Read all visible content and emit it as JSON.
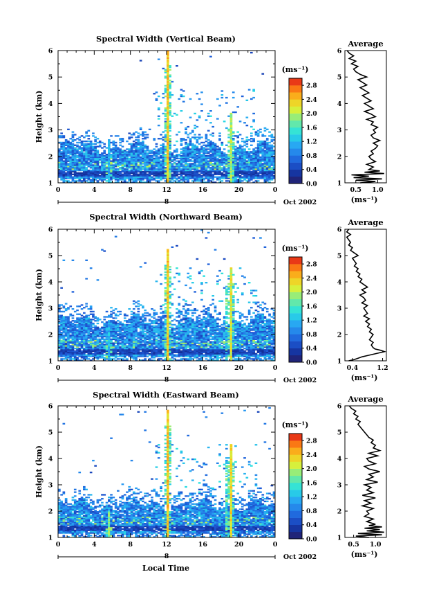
{
  "figure": {
    "xlabel": "Local Time",
    "date_suffix": "Oct 2002",
    "colorbar_unit": "(ms⁻¹)",
    "average_title": "Average",
    "average_unit": "(ms⁻¹)"
  },
  "chart_data": [
    {
      "type": "heatmap",
      "title": "Spectral Width (Vertical Beam)",
      "ylabel": "Height (km)",
      "xlim": [
        0,
        24
      ],
      "ylim": [
        1,
        6
      ],
      "x_ticks": [
        "0",
        "4",
        "8",
        "12",
        "16",
        "20",
        "0"
      ],
      "y_ticks": [
        "1",
        "2",
        "3",
        "4",
        "5",
        "6"
      ],
      "day_label": "8",
      "colorbar": {
        "range": [
          0,
          3
        ],
        "tick_values": [
          0.0,
          0.4,
          0.8,
          1.2,
          1.6,
          2.0,
          2.4,
          2.8
        ],
        "tick_labels": [
          "0.0",
          "0.4",
          "0.8",
          "1.2",
          "1.6",
          "2.0",
          "2.4",
          "2.8"
        ]
      },
      "features": {
        "layer_top_km": 2.3,
        "spikes": [
          {
            "time_h": 11.9,
            "top_km": 6.0,
            "value": 2.6
          },
          {
            "time_h": 19.0,
            "top_km": 3.6,
            "value": 2.2
          },
          {
            "time_h": 5.4,
            "top_km": 2.6,
            "value": 1.4
          }
        ]
      },
      "average": {
        "xlim": [
          0.25,
          1.2
        ],
        "x_ticks": [
          "0.5",
          "1.0"
        ],
        "x_tick_values": [
          0.5,
          1.0
        ],
        "heights": [
          1.0,
          1.05,
          1.1,
          1.15,
          1.2,
          1.25,
          1.3,
          1.35,
          1.4,
          1.45,
          1.5,
          1.6,
          1.7,
          1.8,
          1.9,
          2.0,
          2.1,
          2.2,
          2.3,
          2.4,
          2.5,
          2.6,
          2.7,
          2.8,
          2.9,
          3.0,
          3.1,
          3.2,
          3.3,
          3.4,
          3.5,
          3.6,
          3.7,
          3.8,
          3.9,
          4.0,
          4.1,
          4.2,
          4.3,
          4.4,
          4.5,
          4.6,
          4.7,
          4.8,
          4.9,
          5.0,
          5.1,
          5.2,
          5.3,
          5.4,
          5.5,
          5.6,
          5.7,
          5.8,
          5.9,
          6.0
        ],
        "values": [
          0.6,
          0.95,
          0.5,
          1.1,
          0.45,
          0.8,
          0.4,
          1.15,
          0.7,
          1.05,
          0.8,
          0.9,
          0.75,
          0.95,
          0.85,
          0.8,
          0.9,
          0.85,
          0.95,
          1.0,
          0.9,
          1.05,
          0.9,
          0.85,
          0.95,
          0.9,
          1.0,
          0.85,
          0.9,
          0.75,
          0.95,
          0.85,
          0.7,
          0.9,
          0.8,
          0.7,
          0.85,
          0.75,
          0.65,
          0.8,
          0.7,
          0.6,
          0.75,
          0.65,
          0.55,
          0.75,
          0.6,
          0.5,
          0.45,
          0.55,
          0.4,
          0.5,
          0.35,
          0.45,
          0.35,
          0.3
        ]
      }
    },
    {
      "type": "heatmap",
      "title": "Spectral Width (Northward Beam)",
      "ylabel": "Height (km)",
      "xlim": [
        0,
        24
      ],
      "ylim": [
        1,
        6
      ],
      "x_ticks": [
        "0",
        "4",
        "8",
        "12",
        "16",
        "20",
        "0"
      ],
      "y_ticks": [
        "1",
        "2",
        "3",
        "4",
        "5",
        "6"
      ],
      "day_label": "8",
      "colorbar": {
        "range": [
          0,
          3
        ],
        "tick_values": [
          0.0,
          0.4,
          0.8,
          1.2,
          1.6,
          2.0,
          2.4,
          2.8
        ],
        "tick_labels": [
          "0.0",
          "0.4",
          "0.8",
          "1.2",
          "1.6",
          "2.0",
          "2.4",
          "2.8"
        ]
      },
      "features": {
        "layer_top_km": 2.5,
        "spikes": [
          {
            "time_h": 11.9,
            "top_km": 5.2,
            "value": 2.6
          },
          {
            "time_h": 18.9,
            "top_km": 4.5,
            "value": 2.4
          },
          {
            "time_h": 5.4,
            "top_km": 2.5,
            "value": 1.4
          }
        ]
      },
      "average": {
        "xlim": [
          0.2,
          1.3
        ],
        "x_ticks": [
          "0.4",
          "1.2"
        ],
        "x_tick_values": [
          0.4,
          1.2
        ],
        "heights": [
          1.0,
          1.05,
          1.1,
          1.15,
          1.2,
          1.25,
          1.3,
          1.35,
          1.4,
          1.45,
          1.5,
          1.6,
          1.7,
          1.8,
          1.9,
          2.0,
          2.1,
          2.2,
          2.3,
          2.4,
          2.5,
          2.6,
          2.7,
          2.8,
          2.9,
          3.0,
          3.1,
          3.2,
          3.3,
          3.4,
          3.5,
          3.6,
          3.7,
          3.8,
          3.9,
          4.0,
          4.1,
          4.2,
          4.3,
          4.4,
          4.5,
          4.6,
          4.7,
          4.8,
          4.9,
          5.0,
          5.1,
          5.2,
          5.3,
          5.4,
          5.5,
          5.6,
          5.7,
          5.8,
          5.9,
          6.0
        ],
        "values": [
          0.3,
          0.45,
          0.55,
          0.65,
          0.8,
          0.95,
          1.1,
          1.25,
          1.15,
          1.0,
          0.95,
          0.9,
          0.95,
          0.85,
          0.9,
          0.95,
          0.85,
          0.9,
          0.8,
          0.85,
          0.75,
          0.85,
          0.7,
          0.8,
          0.75,
          0.7,
          0.8,
          0.65,
          0.75,
          0.7,
          0.6,
          0.75,
          0.65,
          0.8,
          0.7,
          0.6,
          0.65,
          0.55,
          0.6,
          0.5,
          0.55,
          0.45,
          0.5,
          0.45,
          0.4,
          0.55,
          0.45,
          0.35,
          0.4,
          0.3,
          0.35,
          0.3,
          0.25,
          0.35,
          0.25,
          0.3
        ]
      }
    },
    {
      "type": "heatmap",
      "title": "Spectral Width (Eastward Beam)",
      "ylabel": "Height (km)",
      "xlim": [
        0,
        24
      ],
      "ylim": [
        1,
        6
      ],
      "x_ticks": [
        "0",
        "4",
        "8",
        "12",
        "16",
        "20",
        "0"
      ],
      "y_ticks": [
        "1",
        "2",
        "3",
        "4",
        "5",
        "6"
      ],
      "day_label": "8",
      "colorbar": {
        "range": [
          0,
          3
        ],
        "tick_values": [
          0.0,
          0.4,
          0.8,
          1.2,
          1.6,
          2.0,
          2.4,
          2.8
        ],
        "tick_labels": [
          "0.0",
          "0.4",
          "0.8",
          "1.2",
          "1.6",
          "2.0",
          "2.4",
          "2.8"
        ]
      },
      "features": {
        "layer_top_km": 2.2,
        "spikes": [
          {
            "time_h": 11.9,
            "top_km": 5.8,
            "value": 2.6
          },
          {
            "time_h": 18.9,
            "top_km": 4.5,
            "value": 2.5
          },
          {
            "time_h": 5.4,
            "top_km": 2.0,
            "value": 2.0
          }
        ]
      },
      "average": {
        "xlim": [
          0.3,
          1.25
        ],
        "x_ticks": [
          "0.5",
          "1.0"
        ],
        "x_tick_values": [
          0.5,
          1.0
        ],
        "heights": [
          1.0,
          1.05,
          1.1,
          1.15,
          1.2,
          1.25,
          1.3,
          1.35,
          1.4,
          1.45,
          1.5,
          1.6,
          1.7,
          1.8,
          1.9,
          2.0,
          2.1,
          2.2,
          2.3,
          2.4,
          2.5,
          2.6,
          2.7,
          2.8,
          2.9,
          3.0,
          3.1,
          3.2,
          3.3,
          3.4,
          3.5,
          3.6,
          3.7,
          3.8,
          3.9,
          4.0,
          4.1,
          4.2,
          4.3,
          4.4,
          4.5,
          4.6,
          4.7,
          4.8,
          4.9,
          5.0,
          5.1,
          5.2,
          5.3,
          5.4,
          5.5,
          5.6,
          5.7,
          5.8,
          5.9,
          6.0
        ],
        "values": [
          0.85,
          0.55,
          1.15,
          0.6,
          1.2,
          0.8,
          1.1,
          0.75,
          1.15,
          0.85,
          1.0,
          0.8,
          0.95,
          0.75,
          0.85,
          0.8,
          0.95,
          0.7,
          0.9,
          0.75,
          1.0,
          0.7,
          0.95,
          0.8,
          0.9,
          0.75,
          1.05,
          0.8,
          0.95,
          0.85,
          1.1,
          0.85,
          0.75,
          1.0,
          0.85,
          0.8,
          1.05,
          0.85,
          1.1,
          0.95,
          1.0,
          0.9,
          0.95,
          0.85,
          0.8,
          0.75,
          0.7,
          0.65,
          0.6,
          0.65,
          0.55,
          0.6,
          0.5,
          0.55,
          0.45,
          0.4
        ]
      }
    }
  ]
}
